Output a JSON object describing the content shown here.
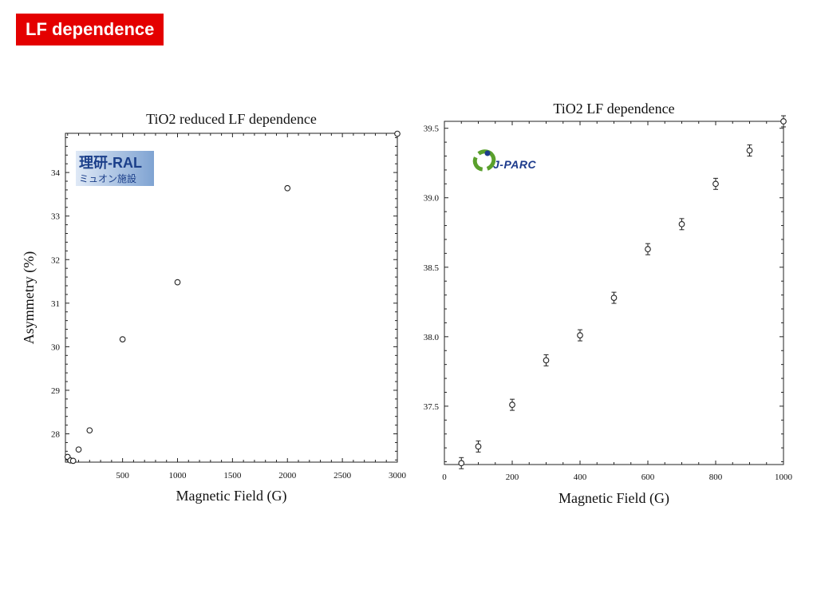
{
  "slide": {
    "title": "LF dependence",
    "title_bg": "#e40000"
  },
  "logos": {
    "left": {
      "line1": "理研-RAL",
      "line2": "ミュオン施設"
    },
    "right": {
      "text": "J-PARC"
    }
  },
  "chart_data": [
    {
      "type": "scatter",
      "title": "TiO2 reduced LF dependence",
      "xlabel": "Magnetic Field (G)",
      "ylabel": "Asymmetry (%)",
      "xlim": [
        -20,
        3000
      ],
      "ylim": [
        27.35,
        34.9
      ],
      "xticks": [
        500,
        1000,
        1500,
        2000,
        2500,
        3000
      ],
      "yticks": [
        28,
        29,
        30,
        31,
        32,
        33,
        34
      ],
      "grid": false,
      "marker": "open-circle",
      "error_bars": false,
      "points": [
        {
          "x": 0,
          "y": 27.47
        },
        {
          "x": 25,
          "y": 27.39
        },
        {
          "x": 50,
          "y": 27.38
        },
        {
          "x": 100,
          "y": 27.64
        },
        {
          "x": 200,
          "y": 28.08
        },
        {
          "x": 500,
          "y": 30.17
        },
        {
          "x": 1000,
          "y": 31.48
        },
        {
          "x": 2000,
          "y": 33.64
        },
        {
          "x": 3000,
          "y": 34.89
        }
      ]
    },
    {
      "type": "scatter",
      "title": "TiO2 LF dependence",
      "xlabel": "Magnetic Field (G)",
      "ylabel": "",
      "xlim": [
        0,
        1000
      ],
      "ylim": [
        37.08,
        39.55
      ],
      "xticks": [
        0,
        200,
        400,
        600,
        800,
        1000
      ],
      "yticks": [
        37.5,
        38.0,
        38.5,
        39.0,
        39.5
      ],
      "ytick_labels": [
        "37.5",
        "38.0",
        "38.5",
        "39.0",
        "39.5"
      ],
      "grid": false,
      "marker": "open-circle",
      "error_bars": true,
      "points": [
        {
          "x": 50,
          "y": 37.09,
          "err": 0.04
        },
        {
          "x": 100,
          "y": 37.21,
          "err": 0.04
        },
        {
          "x": 200,
          "y": 37.51,
          "err": 0.04
        },
        {
          "x": 300,
          "y": 37.83,
          "err": 0.04
        },
        {
          "x": 400,
          "y": 38.01,
          "err": 0.04
        },
        {
          "x": 500,
          "y": 38.28,
          "err": 0.04
        },
        {
          "x": 600,
          "y": 38.63,
          "err": 0.04
        },
        {
          "x": 700,
          "y": 38.81,
          "err": 0.04
        },
        {
          "x": 800,
          "y": 39.1,
          "err": 0.04
        },
        {
          "x": 900,
          "y": 39.34,
          "err": 0.04
        },
        {
          "x": 1000,
          "y": 39.55,
          "err": 0.04
        }
      ]
    }
  ]
}
